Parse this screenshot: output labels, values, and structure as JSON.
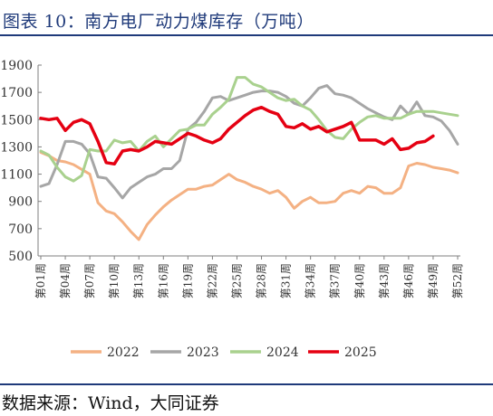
{
  "title": "图表 10：南方电厂动力煤库存（万吨）",
  "source": "数据来源：Wind，大同证券",
  "chart_data": {
    "type": "line",
    "ylim": [
      500,
      1900
    ],
    "yticks": [
      500,
      700,
      900,
      1100,
      1300,
      1500,
      1700,
      1900
    ],
    "ytick_labels": [
      "500",
      "700",
      "900",
      "1100",
      "1300",
      "1500",
      "1700",
      "1900"
    ],
    "xtick_weeks": [
      1,
      4,
      7,
      10,
      13,
      16,
      19,
      22,
      25,
      28,
      31,
      34,
      37,
      40,
      43,
      46,
      49,
      52
    ],
    "xtick_labels": [
      "第01周",
      "第04周",
      "第07周",
      "第10周",
      "第13周",
      "第16周",
      "第19周",
      "第22周",
      "第25周",
      "第28周",
      "第31周",
      "第34周",
      "第37周",
      "第40周",
      "第43周",
      "第46周",
      "第49周",
      "第52周"
    ],
    "legend_position": "bottom",
    "series": [
      {
        "name": "2022",
        "color": "#f4b183",
        "weeks": [
          1,
          2,
          3,
          4,
          5,
          6,
          7,
          8,
          9,
          10,
          11,
          12,
          13,
          14,
          15,
          16,
          17,
          18,
          19,
          20,
          21,
          22,
          23,
          24,
          25,
          26,
          27,
          28,
          29,
          30,
          31,
          32,
          33,
          34,
          35,
          36,
          37,
          38,
          39,
          40,
          41,
          42,
          43,
          44,
          45,
          46,
          47,
          48,
          49,
          50,
          51,
          52
        ],
        "values": [
          1260,
          1235,
          1200,
          1190,
          1170,
          1135,
          1100,
          890,
          830,
          810,
          750,
          680,
          620,
          730,
          800,
          860,
          910,
          950,
          990,
          990,
          1010,
          1020,
          1060,
          1100,
          1060,
          1040,
          1010,
          990,
          960,
          980,
          930,
          850,
          900,
          930,
          890,
          890,
          900,
          960,
          980,
          960,
          1010,
          1000,
          960,
          960,
          1000,
          1160,
          1180,
          1170,
          1150,
          1140,
          1130,
          1110
        ]
      },
      {
        "name": "2023",
        "color": "#a6a6a6",
        "weeks": [
          1,
          2,
          3,
          4,
          5,
          6,
          7,
          8,
          9,
          10,
          11,
          12,
          13,
          14,
          15,
          16,
          17,
          18,
          19,
          20,
          21,
          22,
          23,
          24,
          25,
          26,
          27,
          28,
          29,
          30,
          31,
          32,
          33,
          34,
          35,
          36,
          37,
          38,
          39,
          40,
          41,
          42,
          43,
          44,
          45,
          46,
          47,
          48,
          49,
          50,
          51,
          52
        ],
        "values": [
          1010,
          1030,
          1170,
          1340,
          1340,
          1320,
          1250,
          1080,
          1070,
          1000,
          925,
          1000,
          1040,
          1080,
          1100,
          1140,
          1140,
          1200,
          1430,
          1480,
          1560,
          1660,
          1670,
          1640,
          1660,
          1680,
          1700,
          1710,
          1710,
          1700,
          1670,
          1620,
          1600,
          1660,
          1730,
          1750,
          1690,
          1680,
          1660,
          1620,
          1580,
          1550,
          1520,
          1500,
          1600,
          1540,
          1630,
          1530,
          1520,
          1490,
          1420,
          1320
        ]
      },
      {
        "name": "2024",
        "color": "#a9d18e",
        "weeks": [
          1,
          2,
          3,
          4,
          5,
          6,
          7,
          8,
          9,
          10,
          11,
          12,
          13,
          14,
          15,
          16,
          17,
          18,
          19,
          20,
          21,
          22,
          23,
          24,
          25,
          26,
          27,
          28,
          29,
          30,
          31,
          32,
          33,
          34,
          35,
          36,
          37,
          38,
          39,
          40,
          41,
          42,
          43,
          44,
          45,
          46,
          47,
          48,
          49,
          50,
          51,
          52
        ],
        "values": [
          1270,
          1240,
          1150,
          1080,
          1050,
          1090,
          1280,
          1270,
          1270,
          1350,
          1330,
          1340,
          1270,
          1340,
          1380,
          1300,
          1360,
          1420,
          1430,
          1460,
          1460,
          1540,
          1590,
          1650,
          1810,
          1810,
          1760,
          1740,
          1700,
          1660,
          1640,
          1650,
          1600,
          1570,
          1500,
          1420,
          1370,
          1360,
          1430,
          1480,
          1520,
          1530,
          1510,
          1510,
          1510,
          1540,
          1560,
          1560,
          1560,
          1550,
          1540,
          1530
        ]
      },
      {
        "name": "2025",
        "color": "#e50012",
        "weeks": [
          1,
          2,
          3,
          4,
          5,
          6,
          7,
          8,
          9,
          10,
          11,
          12,
          13,
          14,
          15,
          16,
          17,
          18,
          19,
          20,
          21,
          22,
          23,
          24,
          25,
          26,
          27,
          28,
          29,
          30,
          31,
          32,
          33,
          34,
          35,
          36,
          37,
          38,
          39,
          40,
          41,
          42,
          43,
          44,
          45,
          46,
          47,
          48,
          49
        ],
        "values": [
          1510,
          1500,
          1510,
          1420,
          1480,
          1500,
          1470,
          1340,
          1185,
          1175,
          1270,
          1280,
          1270,
          1300,
          1340,
          1330,
          1320,
          1360,
          1400,
          1380,
          1350,
          1330,
          1360,
          1430,
          1480,
          1530,
          1570,
          1590,
          1560,
          1540,
          1450,
          1440,
          1470,
          1430,
          1450,
          1410,
          1430,
          1450,
          1480,
          1350,
          1350,
          1350,
          1320,
          1360,
          1280,
          1290,
          1330,
          1340,
          1380
        ]
      }
    ]
  }
}
